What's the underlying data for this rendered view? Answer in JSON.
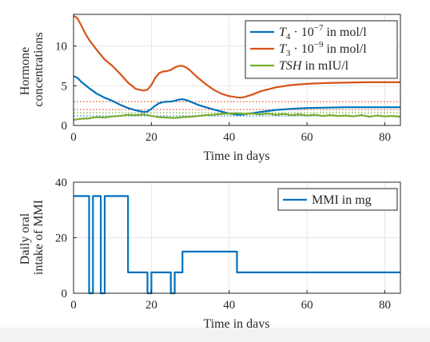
{
  "chart_data": [
    {
      "type": "line",
      "xlabel": "Time in days",
      "ylabel": [
        "Hormone",
        "concentrations"
      ],
      "xlim": [
        0,
        84
      ],
      "ylim": [
        0,
        14
      ],
      "xticks": [
        "0",
        "20",
        "40",
        "60",
        "80"
      ],
      "yticks": [
        "0",
        "5",
        "10"
      ],
      "grid": true,
      "legend_position": "top-right",
      "series": [
        {
          "name": "T4 · 10^-7 in mol/l",
          "legend_parts": [
            {
              "text": "T",
              "style": "italic"
            },
            {
              "text": "4",
              "style": "sub"
            },
            {
              "text": " · 10",
              "style": "normal"
            },
            {
              "text": "−7",
              "style": "sup"
            },
            {
              "text": " in mol/l",
              "style": "normal"
            }
          ],
          "color": "#0072bd",
          "x": [
            0,
            1,
            2,
            4,
            6,
            8,
            10,
            12,
            14,
            16,
            18,
            19,
            20,
            21,
            22,
            23,
            24,
            25,
            26,
            27,
            28,
            29,
            30,
            32,
            34,
            36,
            38,
            40,
            42,
            44,
            48,
            52,
            56,
            60,
            65,
            70,
            75,
            80,
            84
          ],
          "y": [
            6.2,
            6.0,
            5.5,
            4.7,
            4.0,
            3.5,
            3.1,
            2.6,
            2.2,
            1.9,
            1.7,
            1.75,
            2.1,
            2.5,
            2.8,
            2.95,
            3.0,
            3.0,
            3.1,
            3.25,
            3.3,
            3.2,
            3.0,
            2.6,
            2.3,
            2.0,
            1.75,
            1.5,
            1.35,
            1.4,
            1.7,
            1.95,
            2.1,
            2.2,
            2.25,
            2.3,
            2.3,
            2.3,
            2.3
          ]
        },
        {
          "name": "T3 · 10^-9 in mol/l",
          "legend_parts": [
            {
              "text": "T",
              "style": "italic"
            },
            {
              "text": "3",
              "style": "sub"
            },
            {
              "text": " · 10",
              "style": "normal"
            },
            {
              "text": "−9",
              "style": "sup"
            },
            {
              "text": " in mol/l",
              "style": "normal"
            }
          ],
          "color": "#d95319",
          "x": [
            0,
            0.5,
            1,
            2,
            3,
            4,
            6,
            8,
            10,
            12,
            14,
            16,
            18,
            19,
            20,
            21,
            22,
            23,
            24,
            25,
            26,
            27,
            28,
            29,
            30,
            32,
            34,
            36,
            38,
            40,
            42,
            43,
            44,
            46,
            48,
            52,
            56,
            60,
            65,
            70,
            75,
            80,
            84
          ],
          "y": [
            13.8,
            13.7,
            13.5,
            12.6,
            11.6,
            10.8,
            9.5,
            8.3,
            7.5,
            6.5,
            5.4,
            4.6,
            4.4,
            4.5,
            5.1,
            6.0,
            6.6,
            6.8,
            6.85,
            7.0,
            7.3,
            7.5,
            7.5,
            7.3,
            6.9,
            6.0,
            5.2,
            4.5,
            4.0,
            3.7,
            3.55,
            3.5,
            3.6,
            3.9,
            4.3,
            4.8,
            5.1,
            5.25,
            5.35,
            5.4,
            5.45,
            5.45,
            5.45
          ]
        },
        {
          "name": "TSH in mIU/l",
          "legend_parts": [
            {
              "text": "TSH",
              "style": "italic"
            },
            {
              "text": " in mIU/l",
              "style": "normal"
            }
          ],
          "color": "#77ac30",
          "x": [
            0,
            2,
            4,
            6,
            8,
            10,
            12,
            14,
            16,
            18,
            20,
            22,
            24,
            26,
            28,
            30,
            32,
            34,
            36,
            38,
            40,
            42,
            44,
            46,
            48,
            50,
            52,
            54,
            56,
            58,
            60,
            62,
            64,
            66,
            68,
            70,
            72,
            74,
            76,
            78,
            80,
            82,
            84
          ],
          "y": [
            0.7,
            0.85,
            0.9,
            1.05,
            1.0,
            1.15,
            1.2,
            1.35,
            1.3,
            1.4,
            1.2,
            1.05,
            1.0,
            0.95,
            1.05,
            1.1,
            1.2,
            1.3,
            1.35,
            1.45,
            1.5,
            1.55,
            1.45,
            1.5,
            1.4,
            1.5,
            1.35,
            1.45,
            1.3,
            1.4,
            1.25,
            1.35,
            1.2,
            1.3,
            1.2,
            1.25,
            1.15,
            1.3,
            1.1,
            1.25,
            1.15,
            1.2,
            1.1
          ]
        }
      ],
      "reference_lines": [
        {
          "y": 3.0,
          "color": "#d95319",
          "style": "dotted"
        },
        {
          "y": 2.0,
          "color": "#d95319",
          "style": "dotted"
        },
        {
          "y": 1.6,
          "color": "#77ac30",
          "style": "dotted"
        },
        {
          "y": 1.2,
          "color": "#0072bd",
          "style": "dotted"
        }
      ]
    },
    {
      "type": "line",
      "step": true,
      "xlabel": "Time in days",
      "ylabel": [
        "Daily oral",
        "intake of MMI"
      ],
      "xlim": [
        0,
        84
      ],
      "ylim": [
        0,
        40
      ],
      "xticks": [
        "0",
        "20",
        "40",
        "60",
        "80"
      ],
      "yticks": [
        "0",
        "20",
        "40"
      ],
      "grid": true,
      "legend_position": "top-right",
      "series": [
        {
          "name": "MMI in mg",
          "legend_parts": [
            {
              "text": "MMI in mg",
              "style": "normal"
            }
          ],
          "color": "#0072bd",
          "x": [
            0,
            4,
            4,
            5,
            5,
            7,
            7,
            8,
            8,
            14,
            14,
            19,
            19,
            20,
            20,
            25,
            25,
            26,
            26,
            28,
            28,
            42,
            42,
            84
          ],
          "y": [
            35,
            35,
            0,
            0,
            35,
            35,
            0,
            0,
            35,
            35,
            7.5,
            7.5,
            0,
            0,
            7.5,
            7.5,
            0,
            0,
            7.5,
            7.5,
            15,
            15,
            7.5,
            7.5
          ]
        }
      ]
    }
  ]
}
